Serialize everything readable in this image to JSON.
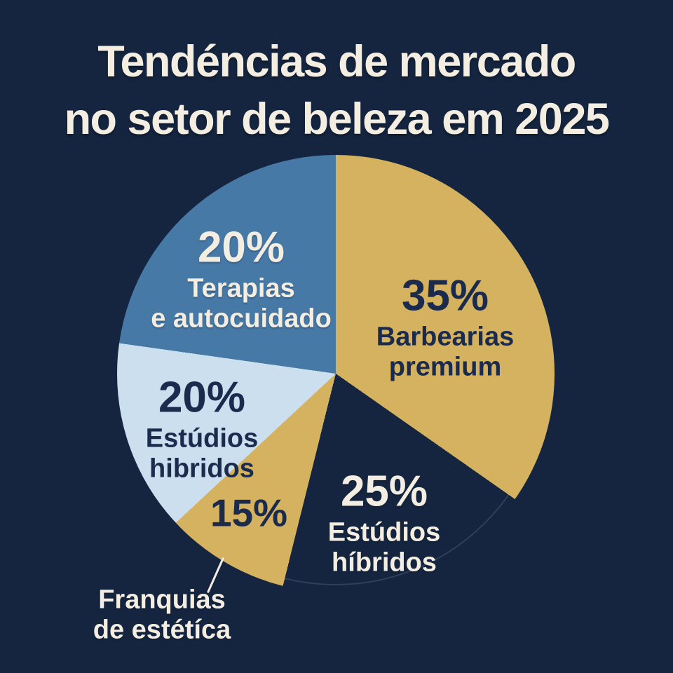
{
  "title": {
    "line1": "Tendéncias de mercado",
    "line2": "no setor de beleza em 2025"
  },
  "colors": {
    "background": "#15253f",
    "gold": "#d5b260",
    "blue": "#4779a7",
    "light_blue": "#cbdfee",
    "cream": "#f3eee1",
    "navy_text": "#1b2b4e",
    "ring": "#2e3f5b"
  },
  "chart_data": {
    "type": "pie",
    "title": "Tendéncias de mercado no setor de beleza em 2025",
    "unit": "%",
    "legend_position": "inside-slices",
    "slices": [
      {
        "name": "Barbearias premium",
        "pct_label": "35%",
        "value": 35,
        "color": "#d5b260",
        "label_color": "navy",
        "start_angle": 0,
        "end_angle": 125,
        "lines": [
          "Barbearias",
          "premium"
        ]
      },
      {
        "name": "Estúdios híbridos",
        "pct_label": "25%",
        "value": 25,
        "color": "transparent",
        "label_color": "cream",
        "start_angle": 125,
        "end_angle": 194,
        "lines": [
          "Estúdios",
          "híbridos"
        ]
      },
      {
        "name": "Franquias de estétíca",
        "pct_label": "15%",
        "value": 15,
        "color": "#d5b260",
        "label_color": "navy",
        "start_angle": 194,
        "end_angle": 227,
        "lines": [
          "Franquias",
          "de estétíca"
        ],
        "label_outside": true
      },
      {
        "name": "Estúdios hibridos",
        "pct_label": "20%",
        "value": 20,
        "color": "#cbdfee",
        "label_color": "navy",
        "start_angle": 227,
        "end_angle": 278,
        "lines": [
          "Estúdios",
          "hibridos"
        ]
      },
      {
        "name": "Terapias e autocuidado",
        "pct_label": "20%",
        "value": 20,
        "color": "#4779a7",
        "label_color": "cream",
        "start_angle": 278,
        "end_angle": 360,
        "lines": [
          "Terapias",
          "e autocuidado"
        ]
      }
    ]
  }
}
